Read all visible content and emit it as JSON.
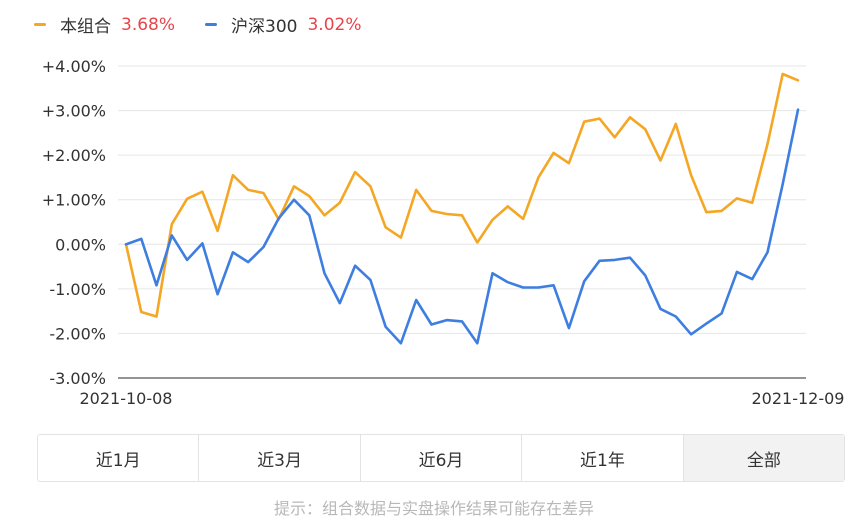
{
  "legend": {
    "series1_name": "本组合",
    "series1_value": "3.68%",
    "series2_name": "沪深300",
    "series2_value": "3.02%"
  },
  "colors": {
    "series1": "#f5a623",
    "series2": "#3d7ee0",
    "value_red": "#e8444a"
  },
  "chart_data": {
    "type": "line",
    "ylim": [
      -3,
      4
    ],
    "ytick_labels": [
      "+4.00%",
      "+3.00%",
      "+2.00%",
      "+1.00%",
      "0.00%",
      "-1.00%",
      "-2.00%",
      "-3.00%"
    ],
    "xtick_labels": [
      "2021-10-08",
      "2021-12-09"
    ],
    "grid": true,
    "series": [
      {
        "name": "本组合",
        "color": "#f5a623",
        "values": [
          0.0,
          -1.52,
          -1.62,
          0.45,
          1.02,
          1.18,
          0.3,
          1.55,
          1.22,
          1.15,
          0.56,
          1.3,
          1.08,
          0.65,
          0.93,
          1.62,
          1.3,
          0.38,
          0.15,
          1.22,
          0.75,
          0.68,
          0.65,
          0.04,
          0.55,
          0.85,
          0.57,
          1.5,
          2.05,
          1.82,
          2.75,
          2.82,
          2.4,
          2.85,
          2.58,
          1.88,
          2.7,
          1.55,
          0.72,
          0.75,
          1.03,
          0.93,
          2.25,
          3.82,
          3.68
        ]
      },
      {
        "name": "沪深300",
        "color": "#3d7ee0",
        "values": [
          0.0,
          0.12,
          -0.92,
          0.2,
          -0.35,
          0.02,
          -1.12,
          -0.18,
          -0.4,
          -0.06,
          0.58,
          1.0,
          0.65,
          -0.65,
          -1.32,
          -0.48,
          -0.8,
          -1.85,
          -2.22,
          -1.25,
          -1.8,
          -1.7,
          -1.73,
          -2.22,
          -0.65,
          -0.85,
          -0.97,
          -0.97,
          -0.92,
          -1.88,
          -0.83,
          -0.37,
          -0.35,
          -0.3,
          -0.7,
          -1.45,
          -1.62,
          -2.02,
          -1.78,
          -1.55,
          -0.62,
          -0.78,
          -0.18,
          1.35,
          3.02
        ]
      }
    ]
  },
  "tabs": [
    "近1月",
    "近3月",
    "近6月",
    "近1年",
    "全部"
  ],
  "active_tab": "全部",
  "footer_note": "提示：组合数据与实盘操作结果可能存在差异"
}
